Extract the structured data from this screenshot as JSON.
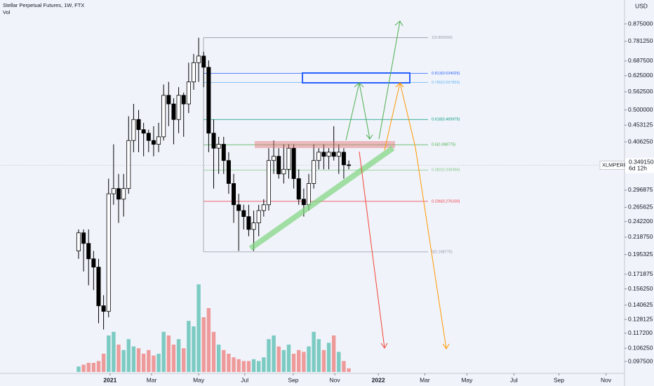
{
  "chart_data": {
    "type": "candlestick",
    "title": "Stellar Perpetual Futures, 1W, FTX",
    "subtitle": "Vol",
    "currency": "USD",
    "log_scale": true,
    "up_color": "#ffffff",
    "down_color": "#000000",
    "volume_up_color": "#7ccbc3",
    "volume_down_color": "#ef9a9a",
    "x": [
      0,
      1,
      2,
      3,
      4,
      5,
      6,
      7,
      8,
      9,
      10,
      11,
      12,
      13,
      14,
      15,
      16,
      17,
      18,
      19,
      20,
      21,
      22,
      23,
      24,
      25,
      26,
      27,
      28,
      29,
      30,
      31,
      32,
      33,
      34,
      35,
      36,
      37,
      38,
      39,
      40,
      41,
      42,
      43,
      44,
      45,
      46,
      47,
      48,
      49,
      50,
      51,
      52,
      53,
      54
    ],
    "open": [
      0.2,
      0.225,
      0.21,
      0.19,
      0.18,
      0.14,
      0.135,
      0.29,
      0.3,
      0.28,
      0.3,
      0.41,
      0.47,
      0.44,
      0.43,
      0.41,
      0.4,
      0.42,
      0.55,
      0.52,
      0.47,
      0.55,
      0.52,
      0.6,
      0.68,
      0.71,
      0.66,
      0.43,
      0.39,
      0.4,
      0.36,
      0.31,
      0.27,
      0.26,
      0.25,
      0.23,
      0.24,
      0.26,
      0.27,
      0.36,
      0.37,
      0.33,
      0.34,
      0.39,
      0.32,
      0.28,
      0.27,
      0.31,
      0.36,
      0.38,
      0.37,
      0.38,
      0.37,
      0.38,
      0.35
    ],
    "high": [
      0.23,
      0.23,
      0.23,
      0.2,
      0.19,
      0.15,
      0.32,
      0.4,
      0.33,
      0.33,
      0.48,
      0.52,
      0.5,
      0.46,
      0.44,
      0.45,
      0.46,
      0.59,
      0.6,
      0.54,
      0.58,
      0.56,
      0.68,
      0.72,
      0.8,
      0.73,
      0.69,
      0.47,
      0.42,
      0.42,
      0.38,
      0.33,
      0.29,
      0.27,
      0.27,
      0.26,
      0.27,
      0.28,
      0.39,
      0.41,
      0.39,
      0.4,
      0.4,
      0.4,
      0.34,
      0.3,
      0.33,
      0.4,
      0.39,
      0.4,
      0.39,
      0.45,
      0.4,
      0.39,
      0.36
    ],
    "low": [
      0.19,
      0.175,
      0.16,
      0.155,
      0.125,
      0.12,
      0.13,
      0.27,
      0.24,
      0.25,
      0.29,
      0.38,
      0.38,
      0.37,
      0.38,
      0.37,
      0.38,
      0.41,
      0.45,
      0.4,
      0.43,
      0.42,
      0.49,
      0.57,
      0.6,
      0.58,
      0.38,
      0.3,
      0.33,
      0.33,
      0.29,
      0.24,
      0.2,
      0.23,
      0.22,
      0.2,
      0.22,
      0.25,
      0.26,
      0.33,
      0.32,
      0.31,
      0.32,
      0.3,
      0.27,
      0.25,
      0.26,
      0.3,
      0.34,
      0.34,
      0.34,
      0.36,
      0.33,
      0.32,
      0.34
    ],
    "close": [
      0.225,
      0.21,
      0.19,
      0.18,
      0.14,
      0.135,
      0.29,
      0.3,
      0.28,
      0.3,
      0.41,
      0.47,
      0.44,
      0.43,
      0.41,
      0.4,
      0.42,
      0.55,
      0.52,
      0.47,
      0.55,
      0.52,
      0.6,
      0.68,
      0.71,
      0.66,
      0.43,
      0.39,
      0.4,
      0.36,
      0.31,
      0.27,
      0.26,
      0.25,
      0.23,
      0.24,
      0.26,
      0.27,
      0.36,
      0.37,
      0.33,
      0.34,
      0.39,
      0.32,
      0.28,
      0.27,
      0.31,
      0.36,
      0.38,
      0.37,
      0.38,
      0.37,
      0.38,
      0.35,
      0.349
    ],
    "volume": [
      3,
      4,
      5,
      5,
      6,
      10,
      20,
      22,
      15,
      12,
      18,
      14,
      13,
      10,
      12,
      9,
      10,
      22,
      20,
      15,
      18,
      13,
      28,
      25,
      48,
      30,
      35,
      22,
      15,
      12,
      10,
      8,
      7,
      6,
      6,
      7,
      6,
      8,
      18,
      20,
      14,
      12,
      15,
      10,
      12,
      11,
      14,
      22,
      18,
      12,
      16,
      20,
      11,
      6,
      2
    ],
    "vlim": [
      0,
      50
    ],
    "xlim": [
      -15.7,
      109.1
    ],
    "xticks": [
      {
        "value": 6.3,
        "label": "2021"
      },
      {
        "value": 14.6,
        "label": "Mar"
      },
      {
        "value": 24.0,
        "label": "May"
      },
      {
        "value": 33.2,
        "label": "Jul"
      },
      {
        "value": 42.9,
        "label": "Sep"
      },
      {
        "value": 51.2,
        "label": "Nov"
      },
      {
        "value": 59.9,
        "label": "2022"
      },
      {
        "value": 69.2,
        "label": "Mar"
      },
      {
        "value": 77.6,
        "label": "May"
      },
      {
        "value": 87.0,
        "label": "Jul"
      },
      {
        "value": 96.0,
        "label": "Sep"
      },
      {
        "value": 105.4,
        "label": "Nov"
      }
    ],
    "ylim": [
      0.087,
      1.022
    ],
    "yticks": [
      {
        "value": 0.0975,
        "label": "0.097500"
      },
      {
        "value": 0.10625,
        "label": "0.106250"
      },
      {
        "value": 0.1172,
        "label": "0.117200"
      },
      {
        "value": 0.128125,
        "label": "0.128125"
      },
      {
        "value": 0.140625,
        "label": "0.140625"
      },
      {
        "value": 0.15625,
        "label": "0.156250"
      },
      {
        "value": 0.171875,
        "label": "0.171875"
      },
      {
        "value": 0.195325,
        "label": "0.195325"
      },
      {
        "value": 0.21875,
        "label": "0.218750"
      },
      {
        "value": 0.2422,
        "label": "0.242200"
      },
      {
        "value": 0.265625,
        "label": "0.265625"
      },
      {
        "value": 0.296875,
        "label": "0.296875"
      },
      {
        "value": 0.40625,
        "label": "0.406250"
      },
      {
        "value": 0.453125,
        "label": "0.453125"
      },
      {
        "value": 0.5,
        "label": "0.500000"
      },
      {
        "value": 0.5625,
        "label": "0.562500"
      },
      {
        "value": 0.625,
        "label": "0.625000"
      },
      {
        "value": 0.6875,
        "label": "0.687500"
      },
      {
        "value": 0.78125,
        "label": "0.781250"
      },
      {
        "value": 0.875,
        "label": "0.875000"
      }
    ],
    "fib_levels": [
      {
        "label": "1(0.800000)",
        "value": 0.8,
        "color": "#9598a1"
      },
      {
        "label": "0.813(0.634025)",
        "value": 0.634025,
        "color": "#2962ff"
      },
      {
        "label": "0.786(0.597856)",
        "value": 0.597856,
        "color": "#64b5f6"
      },
      {
        "label": "0.618(0.469975)",
        "value": 0.469975,
        "color": "#089981"
      },
      {
        "label": "0.5(0.398775)",
        "value": 0.398775,
        "color": "#4caf50"
      },
      {
        "label": "0.382(0.338396)",
        "value": 0.338396,
        "color": "#81c784"
      },
      {
        "label": "0.236(0.276100)",
        "value": 0.2761,
        "color": "#f23645"
      },
      {
        "label": "0(0.198775)",
        "value": 0.198775,
        "color": "#9598a1"
      }
    ],
    "symbol": "XLMPERP",
    "last_price": {
      "value": 0.34915,
      "label": "0.349150"
    },
    "countdown": "6d 12h"
  }
}
